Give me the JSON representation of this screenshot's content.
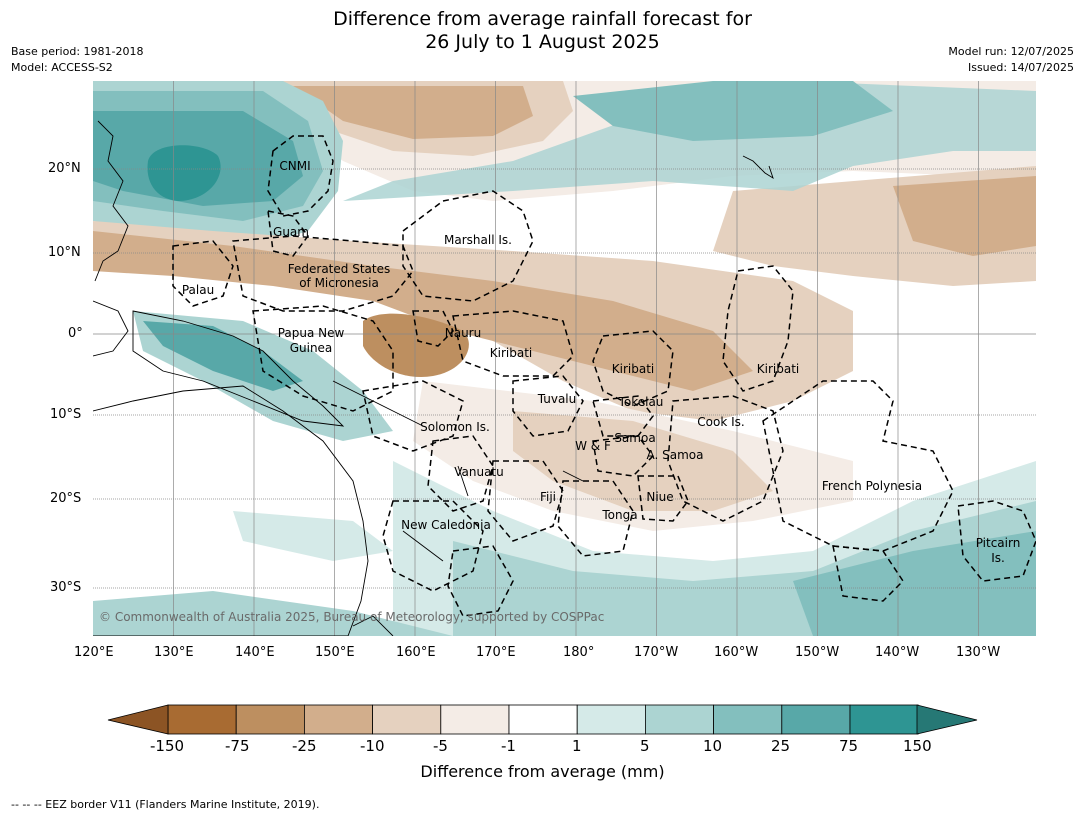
{
  "header": {
    "title_line1": "Difference from average rainfall forecast for",
    "title_line2": "26 July to 1 August 2025",
    "base_period": "Base period: 1981-2018",
    "model": "Model: ACCESS-S2",
    "model_run": "Model run: 12/07/2025",
    "issued": "Issued: 14/07/2025"
  },
  "map": {
    "lat_ticks": [
      "20°N",
      "10°N",
      "0°",
      "10°S",
      "20°S",
      "30°S"
    ],
    "lon_ticks": [
      "120°E",
      "130°E",
      "140°E",
      "150°E",
      "160°E",
      "170°E",
      "180°",
      "170°W",
      "160°W",
      "150°W",
      "140°W",
      "130°W"
    ],
    "places": [
      "CNMI",
      "Guam",
      "Marshall Is.",
      "Federated States",
      "of Micronesia",
      "Palau",
      "Papua New",
      "Guinea",
      "Nauru",
      "Kiribati",
      "Kiribati",
      "Kiribati",
      "Tuvalu",
      "Tokelau",
      "Solomon Is.",
      "Cook Is.",
      "Samoa",
      "W & F",
      "A. Samoa",
      "Vanuatu",
      "French Polynesia",
      "Fiji",
      "Niue",
      "Tonga",
      "New Caledonia",
      "Pitcairn",
      "Is."
    ],
    "copyright": "© Commonwealth of Australia 2025, Bureau of Meteorology, supported by COSPPac"
  },
  "legend": {
    "ticks": [
      "-150",
      "-75",
      "-25",
      "-10",
      "-5",
      "-1",
      "1",
      "5",
      "10",
      "25",
      "75",
      "150"
    ],
    "colors": [
      "#a86b32",
      "#bd8f60",
      "#d2ae8c",
      "#e5d1bf",
      "#f4ece6",
      "#ffffff",
      "#d5eae8",
      "#acd4d2",
      "#83bfbe",
      "#58a8a8",
      "#2e9593"
    ],
    "end_colors": {
      "low": "#8c5424",
      "high": "#267875"
    },
    "title": "Difference from average (mm)"
  },
  "footer": {
    "note": "--  --  -- EEZ border V11 (Flanders Marine Institute, 2019)."
  }
}
